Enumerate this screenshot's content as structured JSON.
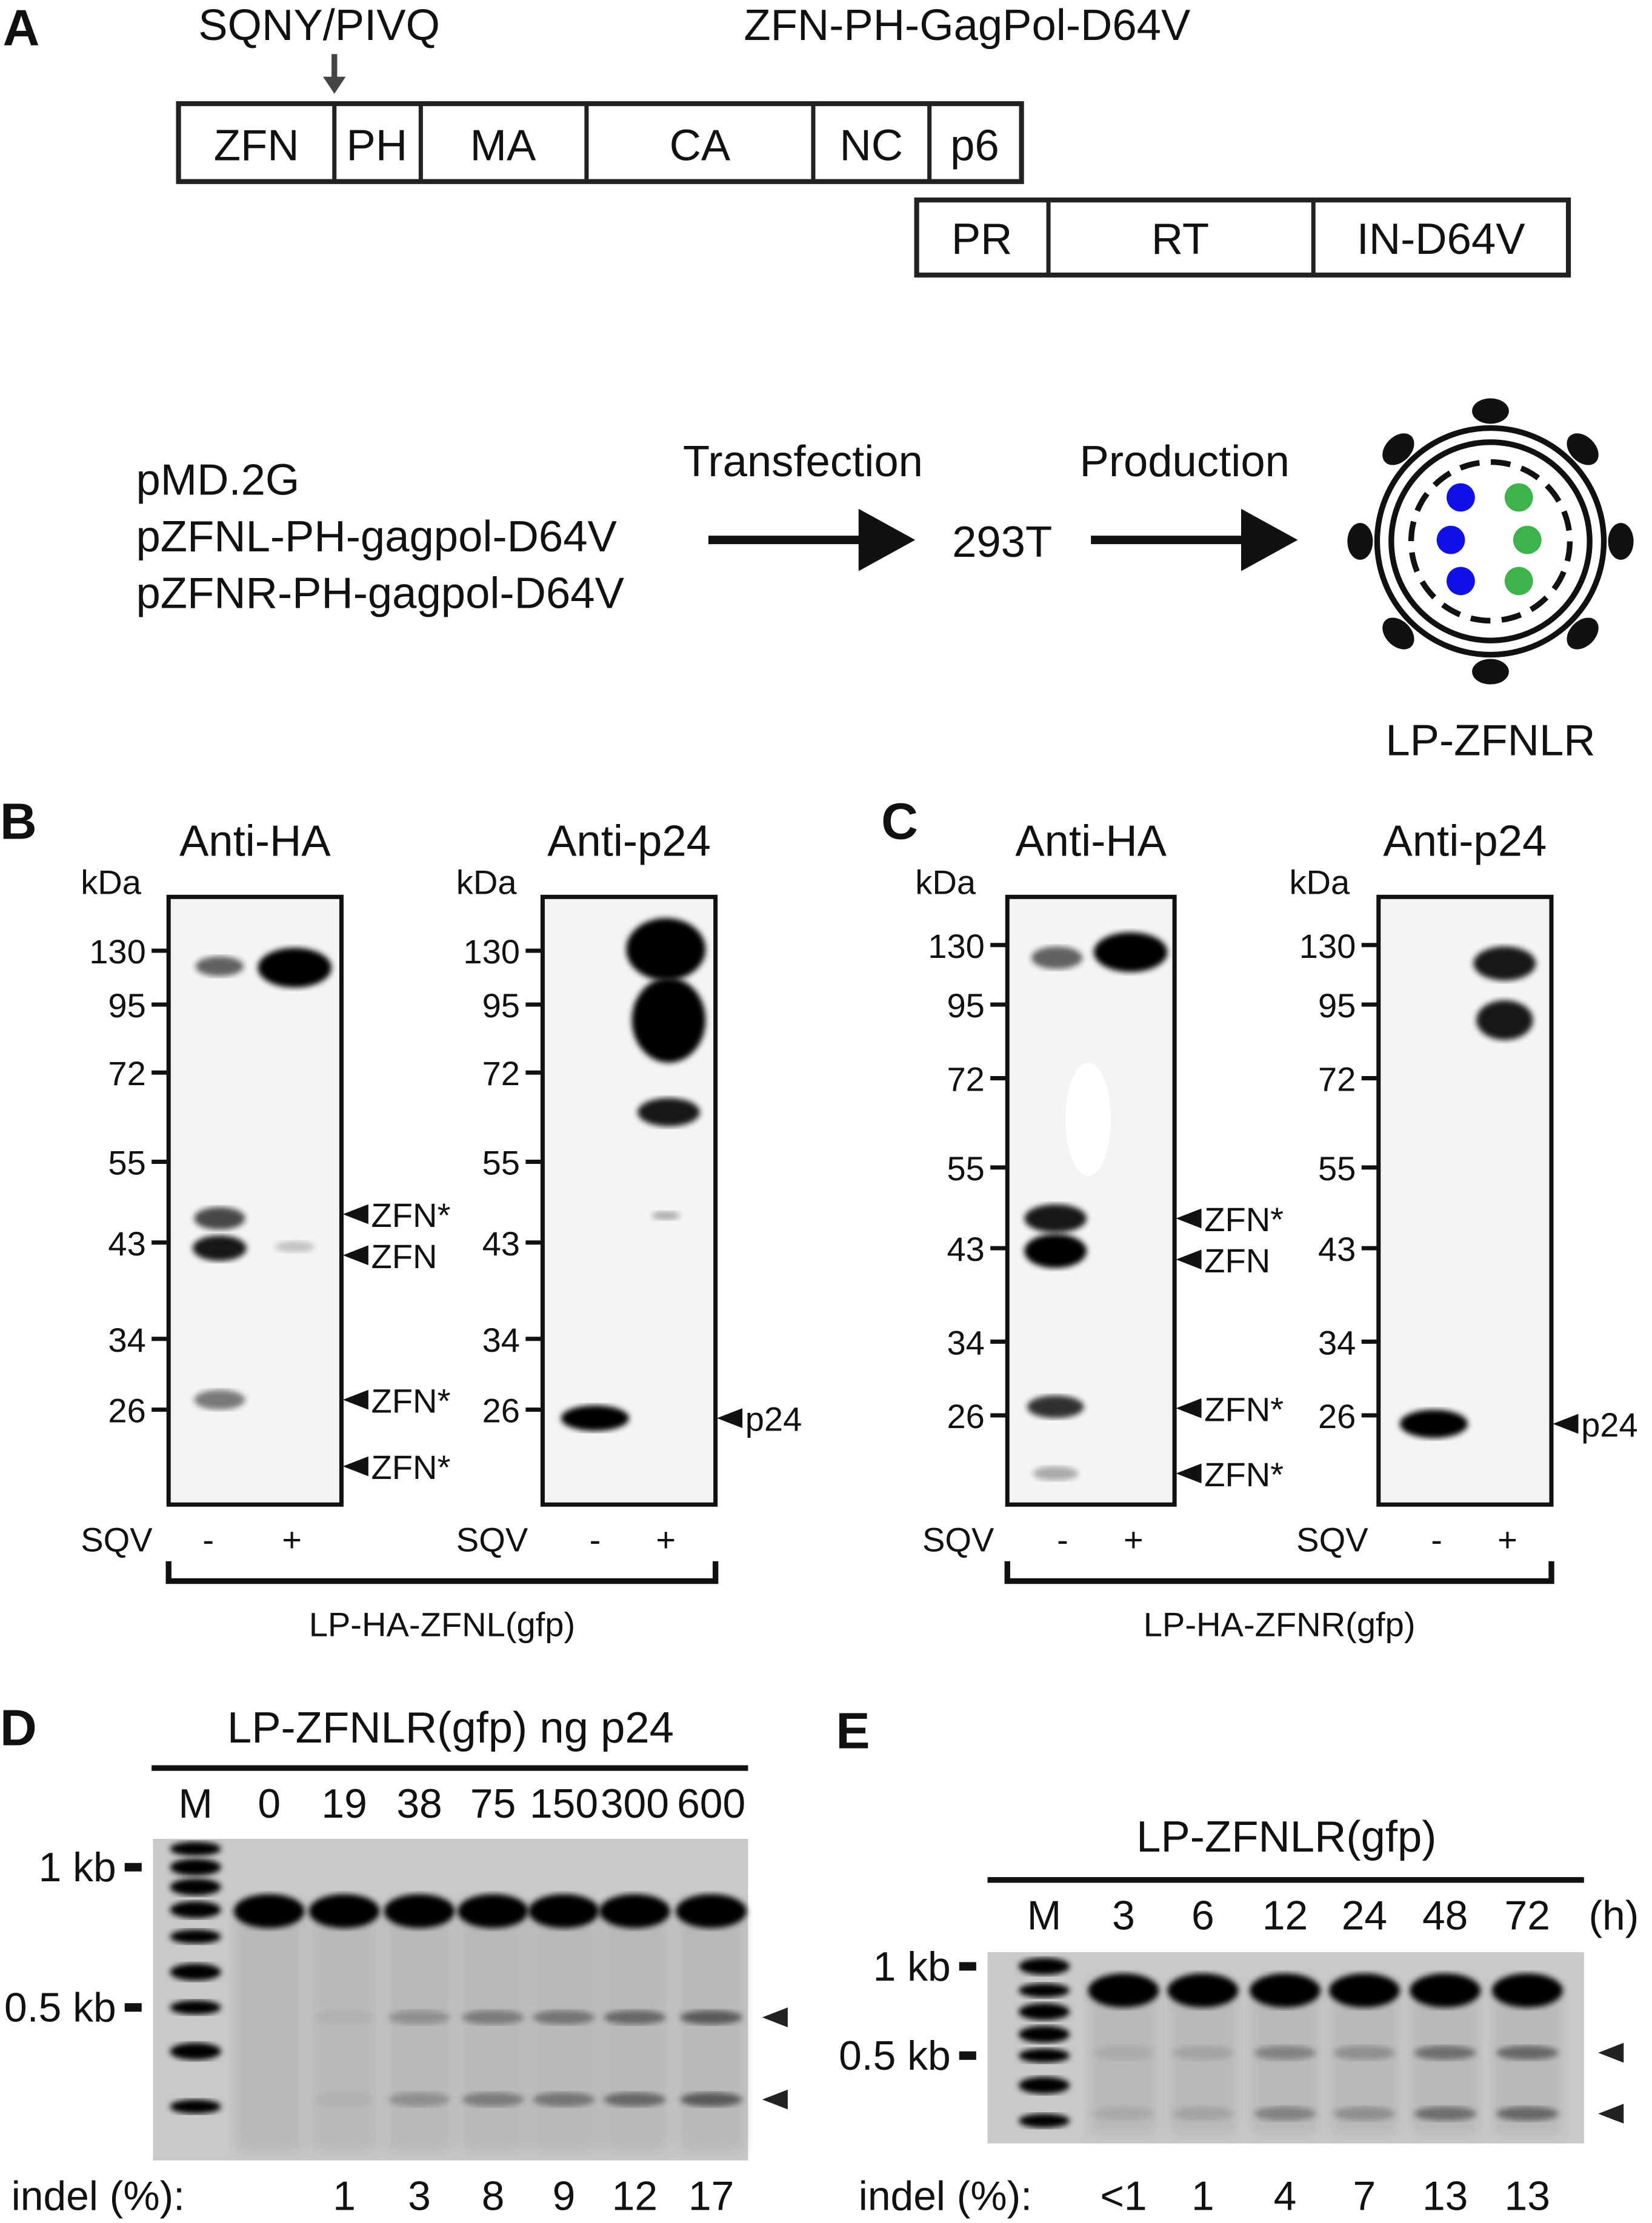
{
  "panelA": {
    "letter": "A",
    "cleavage_site": "SQNY/PIVQ",
    "construct_title": "ZFN-PH-GagPol-D64V",
    "gag_domains": [
      "ZFN",
      "PH",
      "MA",
      "CA",
      "NC",
      "p6"
    ],
    "pol_domains": [
      "PR",
      "RT",
      "IN-D64V"
    ],
    "plasmids": [
      "pMD.2G",
      "pZFNL-PH-gagpol-D64V",
      "pZFNR-PH-gagpol-D64V"
    ],
    "step1": "Transfection",
    "cell_line": "293T",
    "step2": "Production",
    "particle_label": "LP-ZFNLR",
    "colors": {
      "blue_dots": "#1010e8",
      "green_dots": "#3cb44b"
    }
  },
  "panelB": {
    "letter": "B",
    "blot1_title": "Anti-HA",
    "blot2_title": "Anti-p24",
    "kda": "kDa",
    "markers": [
      "130",
      "95",
      "72",
      "55",
      "43",
      "34",
      "26"
    ],
    "blot1_bands": [
      "ZFN*",
      "ZFN",
      "ZFN*",
      "ZFN*"
    ],
    "blot2_band": "p24",
    "sqv": "SQV",
    "minus": "-",
    "plus": "+",
    "group_label": "LP-HA-ZFNL(gfp)"
  },
  "panelC": {
    "letter": "C",
    "blot1_title": "Anti-HA",
    "blot2_title": "Anti-p24",
    "kda": "kDa",
    "markers": [
      "130",
      "95",
      "72",
      "55",
      "43",
      "34",
      "26"
    ],
    "blot1_bands": [
      "ZFN*",
      "ZFN",
      "ZFN*",
      "ZFN*"
    ],
    "blot2_band": "p24",
    "sqv": "SQV",
    "minus": "-",
    "plus": "+",
    "group_label": "LP-HA-ZFNR(gfp)"
  },
  "panelD": {
    "letter": "D",
    "title": "LP-ZFNLR(gfp) ng p24",
    "lanes": [
      "M",
      "0",
      "19",
      "38",
      "75",
      "150",
      "300",
      "600"
    ],
    "size_markers": [
      "1 kb",
      "0.5 kb"
    ],
    "indel_label": "indel (%):",
    "indel_values": [
      "1",
      "3",
      "8",
      "9",
      "12",
      "17"
    ]
  },
  "panelE": {
    "letter": "E",
    "title": "LP-ZFNLR(gfp)",
    "lanes": [
      "M",
      "3",
      "6",
      "12",
      "24",
      "48",
      "72"
    ],
    "unit": "(h)",
    "size_markers": [
      "1 kb",
      "0.5 kb"
    ],
    "indel_label": "indel (%):",
    "indel_values": [
      "<1",
      "1",
      "4",
      "7",
      "13",
      "13"
    ]
  }
}
